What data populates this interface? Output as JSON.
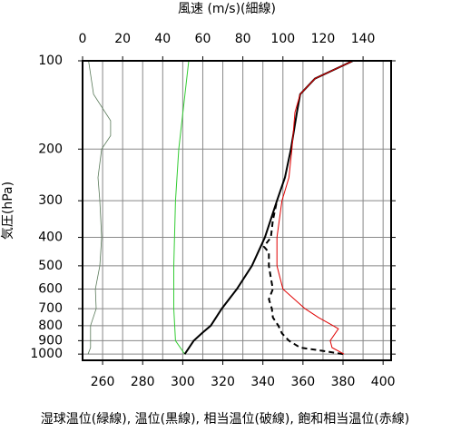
{
  "chart_data": {
    "type": "profile",
    "top_axis_label": "風速 (m/s)(細線)",
    "ylabel": "気圧(hPa)",
    "caption": "湿球温位(緑線), 温位(黒線), 相当温位(破線), 飽和相当温位(赤線)",
    "xlim": [
      250,
      404
    ],
    "xticks": [
      260,
      280,
      300,
      320,
      340,
      360,
      380,
      400
    ],
    "x2lim": [
      0,
      154
    ],
    "x2ticks": [
      0,
      20,
      40,
      60,
      80,
      100,
      120,
      140
    ],
    "ylim": [
      1050,
      100
    ],
    "yticks": [
      100,
      200,
      300,
      400,
      500,
      600,
      700,
      800,
      900,
      1000
    ],
    "log_y": true,
    "grid": true,
    "series": [
      {
        "color": "#5a7a5a",
        "axis": "x2",
        "dash": false,
        "y": [
          1000,
          950,
          900,
          800,
          700,
          600,
          500,
          400,
          300,
          250,
          200,
          180,
          160,
          130,
          100
        ],
        "values": [
          2.7,
          4,
          4,
          4,
          6.8,
          6.4,
          8.6,
          9.5,
          8.6,
          7.7,
          9.5,
          14,
          14,
          5.5,
          3
        ]
      },
      {
        "color": "#33cc33",
        "dash": false,
        "y": [
          1000,
          900,
          700,
          500,
          300,
          200,
          100
        ],
        "values": [
          301,
          296.4,
          295.5,
          295.5,
          296.4,
          298,
          303
        ]
      },
      {
        "color": "#000000",
        "dash": false,
        "y": [
          1000,
          900,
          850,
          800,
          700,
          600,
          500,
          400,
          300,
          250,
          200,
          150,
          130,
          115,
          100
        ],
        "values": [
          301,
          305.5,
          309.5,
          314,
          319.5,
          327,
          334.5,
          341,
          347,
          351,
          354,
          357,
          358.6,
          366,
          385
        ]
      },
      {
        "color": "#000000",
        "dash": true,
        "y": [
          1000,
          980,
          950,
          900,
          850,
          800,
          750,
          700,
          650,
          600,
          550,
          500,
          450,
          430,
          400,
          350,
          300
        ],
        "values": [
          380,
          372,
          358.6,
          353,
          349.5,
          347.7,
          345,
          344.5,
          343,
          345,
          344,
          343,
          343,
          340.5,
          344,
          345,
          347
        ]
      },
      {
        "color": "#e00000",
        "dash": false,
        "y": [
          1000,
          950,
          900,
          820,
          800,
          750,
          700,
          600,
          500,
          400,
          300,
          250,
          200,
          150,
          130,
          115,
          100
        ],
        "values": [
          380.5,
          374.5,
          373.6,
          377.7,
          375,
          367.7,
          361,
          350,
          347,
          347,
          349.5,
          353,
          354.5,
          356,
          358.6,
          366,
          385
        ]
      }
    ]
  }
}
